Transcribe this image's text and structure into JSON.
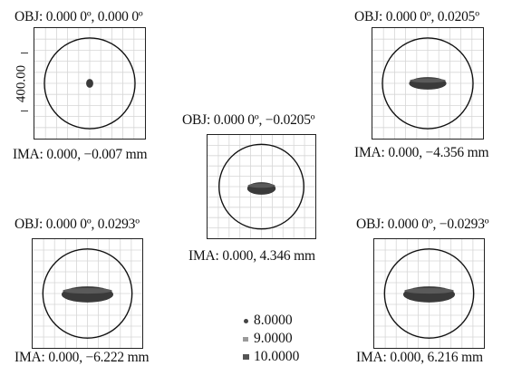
{
  "scale_label": "400.00",
  "fields": [
    {
      "obj": "OBJ: 0.000 0º, 0.000 0º",
      "ima": "IMA: 0.000, −0.007 mm"
    },
    {
      "obj": "OBJ: 0.000 0º, 0.0205º",
      "ima": "IMA: 0.000, −4.356 mm"
    },
    {
      "obj": "OBJ: 0.000 0º, −0.0205º",
      "ima": "IMA: 0.000, 4.346 mm"
    },
    {
      "obj": "OBJ: 0.000 0º, 0.0293º",
      "ima": "IMA: 0.000, −6.222 mm"
    },
    {
      "obj": "OBJ: 0.000 0º, −0.0293º",
      "ima": "IMA: 0.000, 6.216 mm"
    }
  ],
  "legend": [
    {
      "label": "8.0000",
      "marker": "dot"
    },
    {
      "label": "9.0000",
      "marker": "square-light"
    },
    {
      "label": "10.0000",
      "marker": "square-dark"
    }
  ],
  "colors": {
    "spot": "#3a3a3a",
    "grid": "#d6d6d6",
    "circle": "#111111"
  }
}
